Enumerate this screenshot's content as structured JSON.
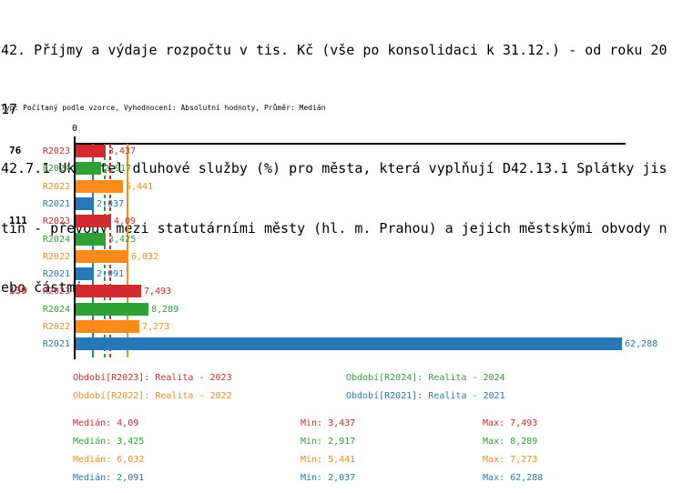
{
  "header": {
    "title_lines": [
      "42. Příjmy a výdaje rozpočtu v tis. Kč (vše po konsolidaci k 31.12.) - od roku 20",
      "17",
      "42.7.1 Ukazatel dluhové služby (%) pro města, která vyplňují D42.13.1 Splátky jis",
      "tin - převody mezi statutárními městy (hl. m. Prahou) a jejich městskými obvody n",
      "ebo částmi"
    ],
    "meta_line": "Typ: Počítaný podle vzorce, Vyhodnocení: Absolutní hodnoty, Průměr: Medián"
  },
  "chart_data": {
    "type": "bar",
    "orientation": "horizontal",
    "title": "42. Příjmy a výdaje rozpočtu v tis. Kč (vše po konsolidaci k 31.12.) - od roku 2017",
    "subtitle": "42.7.1 Ukazatel dluhové služby (%) pro města, která vyplňují D42.13.1 Splátky jistin - převody mezi statutárními městy (hl. m. Prahou) a jejich městskými obvody nebo částmi",
    "unit": "%",
    "axis": {
      "zero_label": "0",
      "xmin": 0,
      "xmax": 62.288,
      "grid": false
    },
    "groups": [
      {
        "label": "76",
        "label_color": "#000000"
      },
      {
        "label": "111",
        "label_color": "#000000"
      },
      {
        "label": "139",
        "label_color": "#d12b2e"
      }
    ],
    "series": [
      {
        "id": "R2023",
        "color": "#d12b2e",
        "median_line_style": "dashed",
        "values": [
          3.437,
          4.09,
          7.493
        ],
        "value_labels": [
          "3,437",
          "4,09",
          "7,493"
        ],
        "median": 4.09,
        "median_label": "4,09",
        "min_label": "3,437",
        "max_label": "7,493",
        "legend": "Období[R2023]: Realita - 2023"
      },
      {
        "id": "R2024",
        "color": "#2fa037",
        "median_line_style": "dashed",
        "values": [
          2.917,
          3.425,
          8.289
        ],
        "value_labels": [
          "2,917",
          "3,425",
          "8,289"
        ],
        "median": 3.425,
        "median_label": "3,425",
        "min_label": "2,917",
        "max_label": "8,289",
        "legend": "Období[R2024]: Realita - 2024"
      },
      {
        "id": "R2022",
        "color": "#f98b1d",
        "median_line_style": "solid",
        "values": [
          5.441,
          6.032,
          7.273
        ],
        "value_labels": [
          "5,441",
          "6,032",
          "7,273"
        ],
        "median": 6.032,
        "median_label": "6,032",
        "min_label": "5,441",
        "max_label": "7,273",
        "legend": "Období[R2022]: Realita - 2022"
      },
      {
        "id": "R2021",
        "color": "#2779b5",
        "median_line_style": "solid",
        "values": [
          2.037,
          2.091,
          62.288
        ],
        "value_labels": [
          "2,037",
          "2,091",
          "62,288"
        ],
        "median": 2.091,
        "median_label": "2,091",
        "min_label": "2,037",
        "max_label": "62,288",
        "legend": "Období[R2021]: Realita - 2021"
      }
    ],
    "stats_labels": {
      "median": "Medián:",
      "min": "Min:",
      "max": "Max:"
    },
    "legend_position": "bottom"
  }
}
